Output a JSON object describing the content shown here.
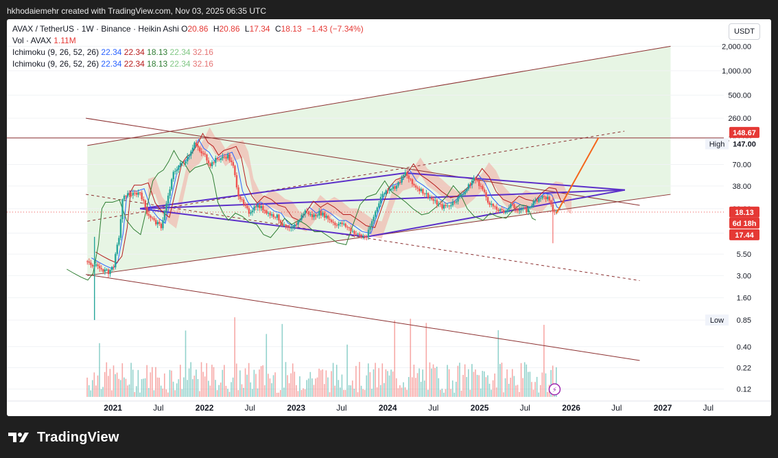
{
  "header": {
    "created_text": "hkhodaiemehr created with TradingView.com, Nov 03, 2025 06:35 UTC"
  },
  "legend": {
    "symbol": "AVAX / TetherUS · 1W · Binance · Heikin Ashi",
    "ohlc": {
      "o_label": "O",
      "o": "20.86",
      "h_label": "H",
      "h": "20.86",
      "l_label": "L",
      "l": "17.34",
      "c_label": "C",
      "c": "18.13",
      "change": "−1.43 (−7.34%)"
    },
    "volume": {
      "label": "Vol · AVAX",
      "value": "1.11M"
    },
    "indicators": [
      {
        "name": "Ichimoku (9, 26, 52, 26)",
        "values": [
          "22.34",
          "22.34",
          "18.13",
          "22.34",
          "32.16"
        ]
      },
      {
        "name": "Ichimoku (9, 26, 52, 26)",
        "values": [
          "22.34",
          "22.34",
          "18.13",
          "22.34",
          "32.16"
        ]
      }
    ]
  },
  "currency_button": "USDT",
  "footer": {
    "brand": "TradingView",
    "logo_icon": "tradingview-logo-icon"
  },
  "colors": {
    "background": "#ffffff",
    "frame": "#1f1f1f",
    "candle_up": "#26a69a",
    "candle_down": "#ef5350",
    "triangle": "#5b2fc9",
    "channel": "#8b2f2f",
    "projection": "#f4661b",
    "tenkan": "#2962ff",
    "kijun": "#b71c1c",
    "chikou": "#2e7d32",
    "cloud_bear": "#f4a7a0",
    "cloud_bull": "#a5d6a7",
    "channel_fill": "#e6f4e3"
  },
  "chart_data": {
    "type": "candlestick",
    "style": "Heikin Ashi",
    "interval": "1W",
    "yscale": "log",
    "ylim": [
      0.1,
      2400
    ],
    "xlim": [
      "2020-09-01",
      "2027-09-01"
    ],
    "x_ticks": [
      "2021",
      "Jul",
      "2022",
      "Jul",
      "2023",
      "Jul",
      "2024",
      "Jul",
      "2025",
      "Jul",
      "2026",
      "Jul",
      "2027",
      "Jul"
    ],
    "y_ticks": [
      {
        "label": "2,000.00",
        "value": 2000
      },
      {
        "label": "1,000.00",
        "value": 1000
      },
      {
        "label": "500.00",
        "value": 500
      },
      {
        "label": "260.00",
        "value": 260
      },
      {
        "label": "147.00",
        "value": 147
      },
      {
        "label": "70.00",
        "value": 70
      },
      {
        "label": "38.00",
        "value": 38
      },
      {
        "label": "20.00",
        "value": 20
      },
      {
        "label": "10.00",
        "value": 10
      },
      {
        "label": "5.50",
        "value": 5.5
      },
      {
        "label": "3.00",
        "value": 3
      },
      {
        "label": "1.60",
        "value": 1.6
      },
      {
        "label": "0.85",
        "value": 0.85
      },
      {
        "label": "0.40",
        "value": 0.4
      },
      {
        "label": "0.22",
        "value": 0.22
      },
      {
        "label": "0.12",
        "value": 0.12
      }
    ],
    "price_labels": {
      "high": {
        "text": "High",
        "value": 147
      },
      "low": {
        "text": "Low",
        "value": 0.85
      },
      "resistance": {
        "label": "148.67",
        "value": 148.67
      },
      "last": {
        "label": "18.13",
        "value": 18.13
      },
      "countdown": "6d 18h",
      "low_wick": {
        "label": "17.44",
        "value": 17.44
      }
    },
    "series": [
      {
        "name": "AVAX/USDT",
        "points": [
          [
            "2020-09-21",
            4.5
          ],
          [
            "2020-10-19",
            4.0
          ],
          [
            "2020-11-16",
            3.6
          ],
          [
            "2020-12-14",
            3.3
          ],
          [
            "2021-01-04",
            4.0
          ],
          [
            "2021-01-25",
            9.0
          ],
          [
            "2021-02-08",
            25
          ],
          [
            "2021-02-22",
            30
          ],
          [
            "2021-03-22",
            30
          ],
          [
            "2021-04-19",
            32
          ],
          [
            "2021-05-17",
            18
          ],
          [
            "2021-06-14",
            14
          ],
          [
            "2021-07-12",
            12
          ],
          [
            "2021-08-09",
            28
          ],
          [
            "2021-08-30",
            55
          ],
          [
            "2021-09-20",
            68
          ],
          [
            "2021-10-11",
            75
          ],
          [
            "2021-11-01",
            95
          ],
          [
            "2021-11-22",
            130
          ],
          [
            "2021-12-13",
            100
          ],
          [
            "2022-01-03",
            90
          ],
          [
            "2022-01-24",
            70
          ],
          [
            "2022-02-14",
            80
          ],
          [
            "2022-03-14",
            85
          ],
          [
            "2022-04-04",
            90
          ],
          [
            "2022-04-25",
            65
          ],
          [
            "2022-05-16",
            30
          ],
          [
            "2022-06-06",
            22
          ],
          [
            "2022-06-27",
            18
          ],
          [
            "2022-07-25",
            22
          ],
          [
            "2022-08-22",
            20
          ],
          [
            "2022-09-19",
            17
          ],
          [
            "2022-10-17",
            16
          ],
          [
            "2022-11-14",
            12
          ],
          [
            "2022-12-12",
            11
          ],
          [
            "2023-01-09",
            14
          ],
          [
            "2023-02-06",
            19
          ],
          [
            "2023-03-06",
            16
          ],
          [
            "2023-04-03",
            18
          ],
          [
            "2023-05-01",
            16
          ],
          [
            "2023-06-05",
            13
          ],
          [
            "2023-07-03",
            13
          ],
          [
            "2023-08-07",
            11
          ],
          [
            "2023-09-04",
            9.5
          ],
          [
            "2023-10-09",
            9.0
          ],
          [
            "2023-11-06",
            16
          ],
          [
            "2023-12-04",
            28
          ],
          [
            "2024-01-01",
            35
          ],
          [
            "2024-02-05",
            38
          ],
          [
            "2024-03-11",
            55
          ],
          [
            "2024-04-08",
            40
          ],
          [
            "2024-05-06",
            35
          ],
          [
            "2024-06-03",
            30
          ],
          [
            "2024-07-01",
            25
          ],
          [
            "2024-08-05",
            21
          ],
          [
            "2024-09-02",
            22
          ],
          [
            "2024-10-07",
            27
          ],
          [
            "2024-11-11",
            35
          ],
          [
            "2024-12-09",
            48
          ],
          [
            "2025-01-06",
            38
          ],
          [
            "2025-02-03",
            25
          ],
          [
            "2025-03-03",
            20
          ],
          [
            "2025-04-07",
            18
          ],
          [
            "2025-05-05",
            22
          ],
          [
            "2025-06-02",
            20
          ],
          [
            "2025-07-07",
            19
          ],
          [
            "2025-08-04",
            24
          ],
          [
            "2025-09-01",
            28
          ],
          [
            "2025-09-29",
            27
          ],
          [
            "2025-10-20",
            19
          ],
          [
            "2025-11-03",
            18.13
          ]
        ]
      }
    ],
    "lines": [
      {
        "name": "triangle-upper",
        "from": [
          "2021-04-19",
          20
        ],
        "to": [
          "2026-08-03",
          34
        ]
      },
      {
        "name": "triangle-lower",
        "from": [
          "2021-04-19",
          20
        ],
        "to": [
          "2024-03-11",
          55
        ]
      },
      {
        "name": "triangle-upper-b",
        "from": [
          "2024-03-11",
          55
        ],
        "to": [
          "2026-08-03",
          34
        ]
      },
      {
        "name": "triangle-bottom",
        "from": [
          "2023-10-09",
          9.0
        ],
        "to": [
          "2026-08-03",
          34
        ]
      },
      {
        "name": "triangle-bottom-left",
        "from": [
          "2021-04-19",
          20
        ],
        "to": [
          "2023-10-09",
          9.0
        ]
      }
    ],
    "volume": {
      "label": "Vol · AVAX",
      "last": "1.11M"
    }
  }
}
